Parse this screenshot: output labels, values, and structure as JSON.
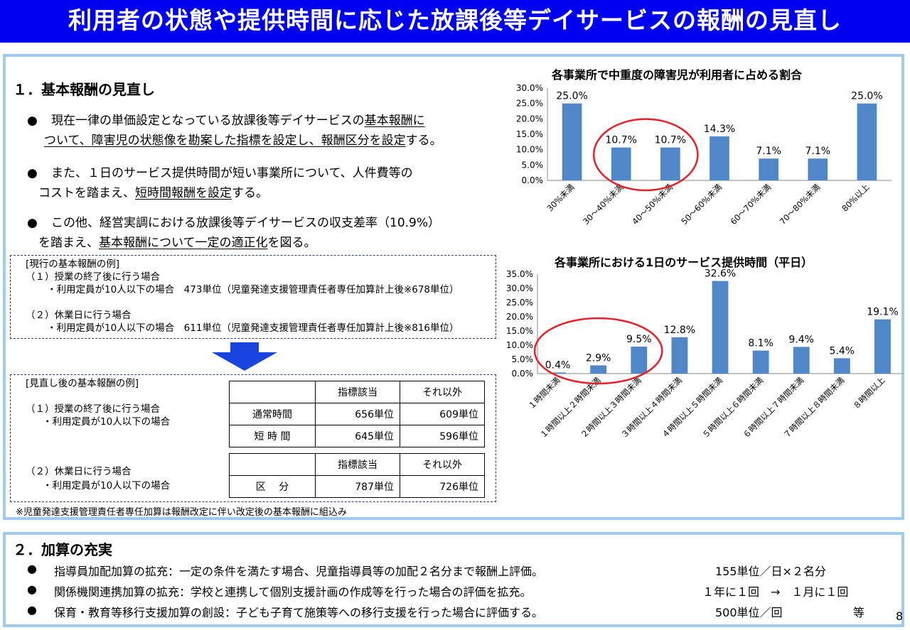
{
  "title": "利用者の状態や提供時間に応じた放課後等デイサービスの報酬の見直し",
  "page_number": "8",
  "section1": {
    "heading": "１．基本報酬の見直し",
    "bullet_symbol": "●",
    "b1_line1_pre": "現在一律の単価設定となっている放課後等デイサービスの",
    "b1_line1_u": "基本報酬に",
    "b1_line2_u": "ついて、障害児の状態像を勘案した指標を設定し、報酬区分を設定",
    "b1_line2_post": "する。",
    "b2_line1": "また、１日のサービス提供時間が短い事業所について、人件費等の",
    "b2_line2_pre": "コストを踏まえ、",
    "b2_line2_u": "短時間報酬を設定",
    "b2_line2_post": "する。",
    "b3_line1": "この他、経営実調における放課後等デイサービスの収支差率（10.9%）",
    "b3_line2_pre": "を踏まえ、",
    "b3_line2_u": "基本報酬について一定の適正化",
    "b3_line2_post": "を図る。",
    "current": {
      "heading": "[現行の基本報酬の例]",
      "c1_title": "（１）授業の終了後に行う場合",
      "c1_detail": "・利用定員が10人以下の場合　473単位（児童発達支援管理責任者専任加算計上後※678単位）",
      "c2_title": "（２）休業日に行う場合",
      "c2_detail": "・利用定員が10人以下の場合　611単位（児童発達支援管理責任者専任加算計上後※816単位）"
    },
    "revised": {
      "heading": "[見直し後の基本報酬の例]",
      "r1_title": "（１）授業の終了後に行う場合",
      "r1_detail": "・利用定員が10人以下の場合",
      "r2_title": "（２）休業日に行う場合",
      "r2_detail": "・利用定員が10人以下の場合",
      "col_indicator": "指標該当",
      "col_other": "それ以外",
      "table1": [
        {
          "label": "通常時間",
          "indicator": "656単位",
          "other": "609単位"
        },
        {
          "label": "短 時 間",
          "indicator": "645単位",
          "other": "596単位"
        }
      ],
      "table2": [
        {
          "label": "区　 分",
          "indicator": "787単位",
          "other": "726単位"
        }
      ]
    },
    "footnote": "※児童発達支援管理責任者専任加算は報酬改定に伴い改定後の基本報酬に組込み"
  },
  "section2": {
    "heading": "２．加算の充実",
    "items": [
      {
        "text": "指導員加配加算の拡充：一定の条件を満たす場合、児童指導員等の加配２名分まで報酬上評価。",
        "value": "155単位／日×２名分"
      },
      {
        "text": "関係機関連携加算の拡充：学校と連携して個別支援計画の作成等を行った場合の評価を拡充。",
        "value": "１年に１回　→　１月に１回"
      },
      {
        "text": "保育・教育等移行支援加算の創設：子ども子育て施策等への移行支援を行った場合に評価する。",
        "value": "500単位／回"
      }
    ],
    "etc": "等"
  },
  "colors": {
    "title_bg": "#0000f0",
    "panel_border": "#9fcbef",
    "bar": "#4f87c9",
    "highlight_circle": "#e8202a",
    "arrow": "#1a44e0"
  },
  "chart_data": [
    {
      "type": "bar",
      "title": "各事業所で中重度の障害児が利用者に占める割合",
      "categories": [
        "30%未満",
        "30～40%未満",
        "40～50%未満",
        "50～60%未満",
        "60～70%未満",
        "70～80%未満",
        "80%以上"
      ],
      "values": [
        25.0,
        10.7,
        10.7,
        14.3,
        7.1,
        7.1,
        25.0
      ],
      "data_labels": [
        "25.0%",
        "10.7%",
        "10.7%",
        "14.3%",
        "7.1%",
        "7.1%",
        "25.0%"
      ],
      "yticks": [
        "0.0%",
        "5.0%",
        "10.0%",
        "15.0%",
        "20.0%",
        "25.0%",
        "30.0%"
      ],
      "ylim": [
        0,
        30
      ],
      "highlighted": [
        "30～40%未満",
        "40～50%未満"
      ]
    },
    {
      "type": "bar",
      "title": "各事業所における1日のサービス提供時間（平日）",
      "categories": [
        "１時間未満",
        "１時間以上２時間未満",
        "２時間以上３時間未満",
        "３時間以上４時間未満",
        "４時間以上５時間未満",
        "５時間以上６時間未満",
        "６時間以上７時間未満",
        "７時間以上８時間未満",
        "８時間以上"
      ],
      "values": [
        0.4,
        2.9,
        9.5,
        12.8,
        32.6,
        8.1,
        9.4,
        5.4,
        19.1
      ],
      "data_labels": [
        "0.4%",
        "2.9%",
        "9.5%",
        "12.8%",
        "32.6%",
        "8.1%",
        "9.4%",
        "5.4%",
        "19.1%"
      ],
      "yticks": [
        "0.0%",
        "5.0%",
        "10.0%",
        "15.0%",
        "20.0%",
        "25.0%",
        "30.0%",
        "35.0%"
      ],
      "ylim": [
        0,
        35
      ],
      "highlighted": [
        "１時間未満",
        "１時間以上２時間未満",
        "２時間以上３時間未満"
      ]
    }
  ]
}
